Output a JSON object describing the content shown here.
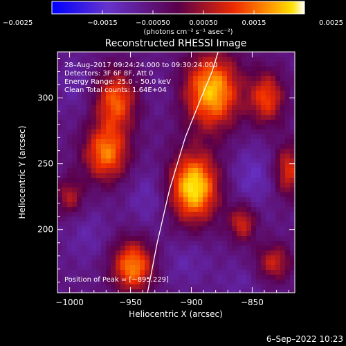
{
  "chart_data": {
    "type": "heatmap",
    "title": "Reconstructed RHESSI Image",
    "xlabel": "Heliocentric X (arcsec)",
    "ylabel": "Heliocentric Y (arcsec)",
    "xlim": [
      -1010,
      -815
    ],
    "ylim": [
      152,
      335
    ],
    "x_ticks": [
      -1000,
      -950,
      -900,
      -850
    ],
    "y_ticks": [
      200,
      250,
      300
    ],
    "x_tick_labels": [
      "−1000",
      "−950",
      "−900",
      "−850"
    ],
    "y_tick_labels": [
      "200",
      "250",
      "300"
    ],
    "colorbar": {
      "range": [
        -0.0025,
        0.0025
      ],
      "ticks": [
        -0.0025,
        -0.0015,
        -0.0005,
        0.0005,
        0.0015,
        0.0025
      ],
      "tick_labels": [
        "−0.0025",
        "−0.0015",
        "−0.00050",
        "0.00050",
        "0.0015",
        "0.0025"
      ],
      "units_label": "(photons cm⁻² s⁻¹ asec⁻²)"
    },
    "annotations": [
      "28–Aug–2017 09:24:24.000 to 09:30:24.000",
      "Detectors: 3F 6F 8F, Att 0",
      "Energy Range: 25.0 – 50.0 keV",
      "Clean    Total counts: 1.64E+04"
    ],
    "peak_label": "Position of Peak = [−895,229]",
    "peak_position": [
      -895,
      229
    ],
    "limb_curve": [
      [
        -936,
        152
      ],
      [
        -928,
        190
      ],
      [
        -918,
        230
      ],
      [
        -905,
        270
      ],
      [
        -892,
        300
      ],
      [
        -883,
        320
      ],
      [
        -878,
        335
      ]
    ],
    "sources": [
      {
        "x": -898,
        "y": 232,
        "peak": 0.0024,
        "sx": 14,
        "sy": 18
      },
      {
        "x": -883,
        "y": 305,
        "peak": 0.0021,
        "sx": 16,
        "sy": 20
      },
      {
        "x": -970,
        "y": 258,
        "peak": 0.0016,
        "sx": 13,
        "sy": 15
      },
      {
        "x": -962,
        "y": 298,
        "peak": 0.0014,
        "sx": 12,
        "sy": 16
      },
      {
        "x": -948,
        "y": 172,
        "peak": 0.0017,
        "sx": 12,
        "sy": 14
      },
      {
        "x": -838,
        "y": 300,
        "peak": 0.0012,
        "sx": 10,
        "sy": 14
      },
      {
        "x": -820,
        "y": 245,
        "peak": 0.001,
        "sx": 8,
        "sy": 14
      },
      {
        "x": -858,
        "y": 205,
        "peak": 0.0009,
        "sx": 8,
        "sy": 10
      },
      {
        "x": -832,
        "y": 175,
        "peak": 0.0008,
        "sx": 10,
        "sy": 10
      },
      {
        "x": -1000,
        "y": 225,
        "peak": 0.0006,
        "sx": 8,
        "sy": 10
      },
      {
        "x": -985,
        "y": 195,
        "peak": -0.001,
        "sx": 12,
        "sy": 14
      },
      {
        "x": -935,
        "y": 225,
        "peak": -0.0011,
        "sx": 12,
        "sy": 16
      },
      {
        "x": -850,
        "y": 240,
        "peak": -0.0012,
        "sx": 12,
        "sy": 16
      },
      {
        "x": -905,
        "y": 175,
        "peak": -0.001,
        "sx": 14,
        "sy": 12
      },
      {
        "x": -995,
        "y": 310,
        "peak": -0.001,
        "sx": 10,
        "sy": 14
      },
      {
        "x": -925,
        "y": 305,
        "peak": -0.0008,
        "sx": 10,
        "sy": 12
      },
      {
        "x": -860,
        "y": 160,
        "peak": -0.0009,
        "sx": 12,
        "sy": 10
      }
    ]
  },
  "timestamp": "6–Sep–2022 10:23"
}
